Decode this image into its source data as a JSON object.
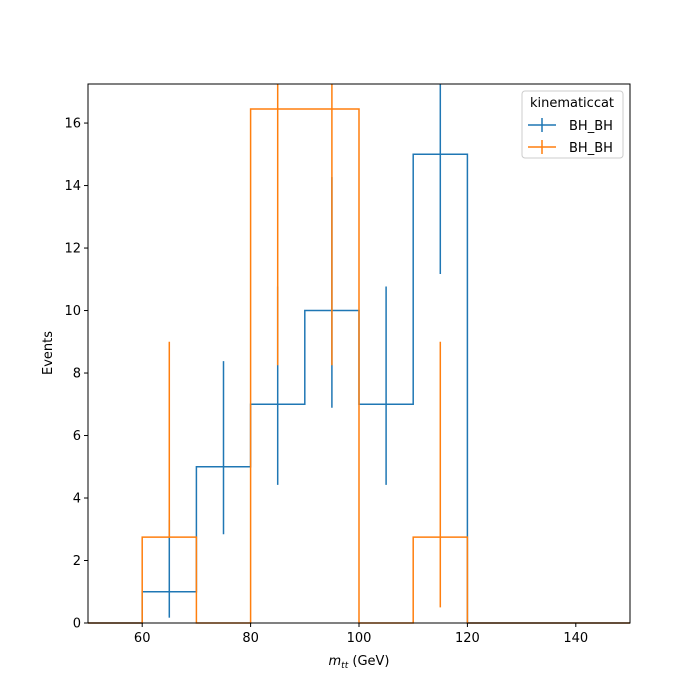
{
  "chart_data": {
    "type": "histogram",
    "xlabel_main": "m",
    "xlabel_sub": "tt",
    "xlabel_unit": " (GeV)",
    "ylabel": "Events",
    "xlim": [
      50,
      150
    ],
    "ylim": [
      0,
      17.25
    ],
    "xticks": [
      60,
      80,
      100,
      120,
      140
    ],
    "yticks": [
      0,
      2,
      4,
      6,
      8,
      10,
      12,
      14,
      16
    ],
    "grid": false,
    "bin_edges": [
      50,
      60,
      70,
      80,
      90,
      100,
      110,
      120,
      130,
      140,
      150
    ],
    "legend": {
      "title": "kinematiccat",
      "position": "top-right"
    },
    "series": [
      {
        "name": "BH_BH",
        "color": "#1f77b4",
        "values": [
          0,
          1,
          5,
          7,
          10,
          7,
          15,
          0,
          0,
          0
        ],
        "err_low": [
          0,
          0.83,
          2.16,
          2.58,
          3.11,
          2.58,
          3.83,
          0,
          0,
          0
        ],
        "err_high": [
          0,
          2.3,
          3.38,
          3.77,
          4.27,
          3.77,
          4.96,
          0,
          0,
          0
        ]
      },
      {
        "name": "BH_BH",
        "color": "#ff7f0e",
        "values": [
          0,
          2.75,
          0,
          16.45,
          16.45,
          0,
          2.75,
          0,
          0,
          0
        ],
        "err_low": [
          0,
          0,
          0,
          8.2,
          8.2,
          0,
          2.25,
          0,
          0,
          0
        ],
        "err_high": [
          0,
          6.25,
          0,
          8.2,
          8.2,
          0,
          6.25,
          0,
          0,
          0
        ]
      }
    ]
  }
}
